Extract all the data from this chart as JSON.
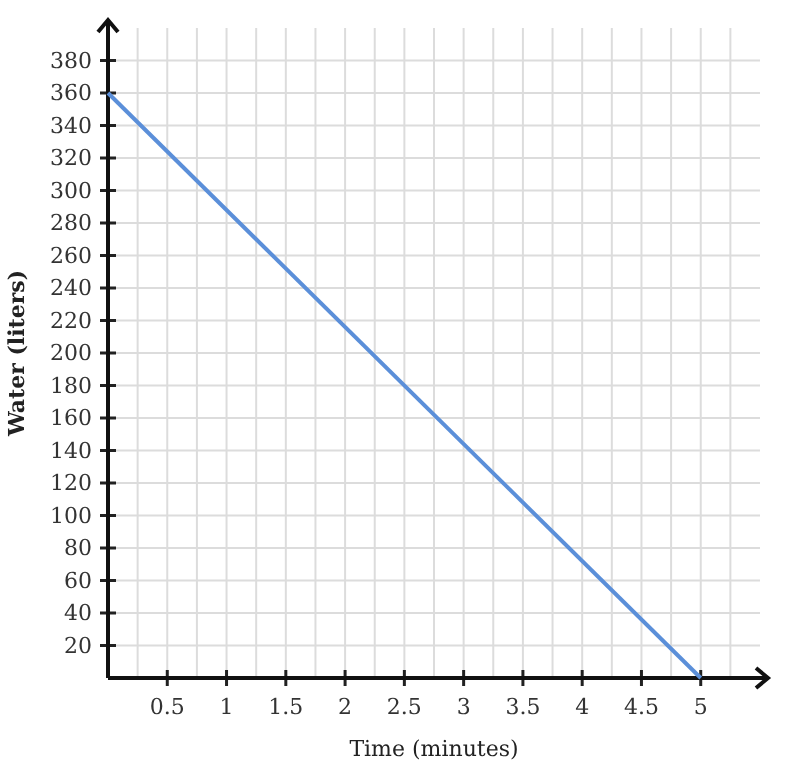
{
  "chart_data": {
    "type": "line",
    "xlabel": "Time (minutes)",
    "ylabel": "Water (liters)",
    "x": [
      0,
      5
    ],
    "series": [
      {
        "color": "#5b8fd9",
        "values": [
          360,
          0
        ]
      }
    ],
    "xlim": [
      0,
      5.5
    ],
    "ylim": [
      0,
      400
    ],
    "xticks": [
      {
        "value": 0.25,
        "label": null
      },
      0.5,
      {
        "value": 0.75,
        "label": null
      },
      1,
      {
        "value": 1.25,
        "label": null
      },
      1.5,
      {
        "value": 1.75,
        "label": null
      },
      2,
      {
        "value": 2.25,
        "label": null
      },
      2.5,
      {
        "value": 2.75,
        "label": null
      },
      3,
      {
        "value": 3.25,
        "label": null
      },
      3.5,
      {
        "value": 3.75,
        "label": null
      },
      4,
      {
        "value": 4.25,
        "label": null
      },
      4.5,
      {
        "value": 4.75,
        "label": null
      },
      5,
      {
        "value": 5.25,
        "label": null
      }
    ],
    "yticks": [
      20,
      40,
      60,
      80,
      100,
      120,
      140,
      160,
      180,
      200,
      220,
      240,
      260,
      280,
      300,
      320,
      340,
      360,
      380
    ],
    "grid": true,
    "marker": "none",
    "line_style": "solid"
  }
}
